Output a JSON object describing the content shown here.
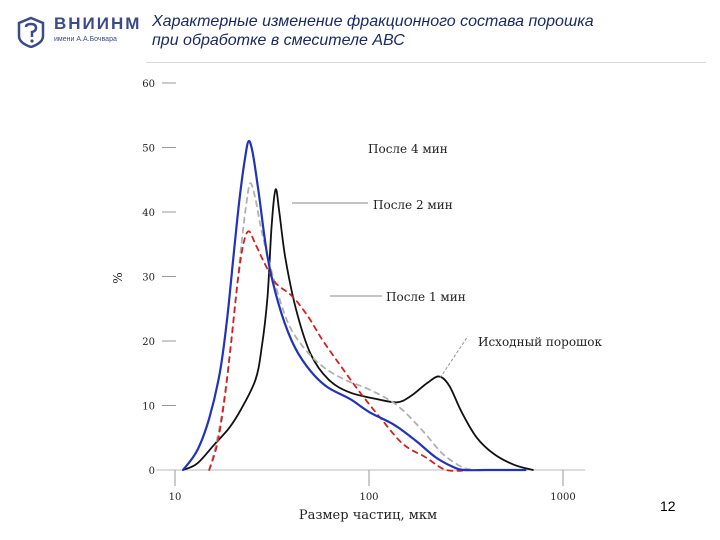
{
  "header": {
    "logo_name": "ВНИИНМ",
    "logo_subtitle": "имени А.А.Бочвара",
    "title_lines": [
      "Характерные изменение фракционного состава порошка",
      "при обработке в смесителе АВС"
    ]
  },
  "page_number": "12",
  "chart_data": {
    "type": "line",
    "xscale": "log",
    "xlim": [
      8,
      1300
    ],
    "ylim": [
      0,
      60
    ],
    "xlabel": "Размер частиц, мкм",
    "ylabel": "%",
    "x_ticks": [
      {
        "value": 10,
        "label": "10"
      },
      {
        "value": 100,
        "label": "100"
      },
      {
        "value": 1000,
        "label": "1000"
      }
    ],
    "y_ticks": [
      {
        "value": 0,
        "label": "0"
      },
      {
        "value": 10,
        "label": "10"
      },
      {
        "value": 20,
        "label": "20"
      },
      {
        "value": 30,
        "label": "30"
      },
      {
        "value": 40,
        "label": "40"
      },
      {
        "value": 50,
        "label": "50"
      },
      {
        "value": 60,
        "label": "60"
      }
    ],
    "series": [
      {
        "name": "Исходный порошок",
        "color": "#111111",
        "dash": "solid",
        "points": [
          [
            11,
            0
          ],
          [
            13,
            1
          ],
          [
            16,
            4
          ],
          [
            19,
            6.5
          ],
          [
            22,
            9.5
          ],
          [
            26,
            14
          ],
          [
            28,
            19
          ],
          [
            30,
            27
          ],
          [
            31.5,
            38
          ],
          [
            33,
            43.5
          ],
          [
            34.5,
            40
          ],
          [
            37,
            33
          ],
          [
            42,
            25
          ],
          [
            50,
            18
          ],
          [
            62,
            14
          ],
          [
            80,
            12
          ],
          [
            110,
            11
          ],
          [
            140,
            10.5
          ],
          [
            165,
            11.5
          ],
          [
            200,
            13.5
          ],
          [
            230,
            14.5
          ],
          [
            260,
            13
          ],
          [
            300,
            9
          ],
          [
            360,
            5
          ],
          [
            440,
            2.5
          ],
          [
            560,
            0.8
          ],
          [
            700,
            0
          ]
        ]
      },
      {
        "name": "После 2 мин",
        "color": "#b0b0b0",
        "dash": "dashed",
        "points": [
          [
            15,
            0
          ],
          [
            16,
            3
          ],
          [
            17.5,
            9
          ],
          [
            19,
            17
          ],
          [
            20.5,
            26
          ],
          [
            22,
            35
          ],
          [
            23.5,
            42
          ],
          [
            24.5,
            44.5
          ],
          [
            26,
            42
          ],
          [
            28,
            37
          ],
          [
            32,
            30
          ],
          [
            38,
            23
          ],
          [
            46,
            19
          ],
          [
            58,
            16
          ],
          [
            75,
            14
          ],
          [
            100,
            12.5
          ],
          [
            140,
            10
          ],
          [
            190,
            6
          ],
          [
            240,
            2.5
          ],
          [
            300,
            0.5
          ],
          [
            350,
            0
          ]
        ]
      },
      {
        "name": "После 1 мин",
        "color": "#d42020",
        "dash": "dashed",
        "points": [
          [
            15,
            0
          ],
          [
            16.5,
            4
          ],
          [
            18,
            11
          ],
          [
            19.5,
            20
          ],
          [
            21,
            29
          ],
          [
            22.5,
            35
          ],
          [
            24,
            37
          ],
          [
            26,
            35
          ],
          [
            29,
            32
          ],
          [
            33,
            29
          ],
          [
            40,
            27
          ],
          [
            48,
            24
          ],
          [
            58,
            20
          ],
          [
            72,
            16
          ],
          [
            90,
            12
          ],
          [
            115,
            8
          ],
          [
            150,
            4
          ],
          [
            195,
            2
          ],
          [
            250,
            0
          ],
          [
            330,
            0
          ]
        ]
      },
      {
        "name": "После 4 мин",
        "color": "#2233bb",
        "dash": "solid",
        "points": [
          [
            11,
            0
          ],
          [
            13,
            3
          ],
          [
            15,
            8
          ],
          [
            17,
            15
          ],
          [
            18.5,
            23
          ],
          [
            20,
            33
          ],
          [
            21.5,
            42
          ],
          [
            23,
            48.5
          ],
          [
            24,
            51
          ],
          [
            25.2,
            49
          ],
          [
            27,
            43
          ],
          [
            30,
            33
          ],
          [
            34,
            26
          ],
          [
            40,
            20
          ],
          [
            48,
            16
          ],
          [
            60,
            13
          ],
          [
            80,
            11
          ],
          [
            100,
            9
          ],
          [
            135,
            7
          ],
          [
            175,
            4.5
          ],
          [
            220,
            2
          ],
          [
            270,
            0.5
          ],
          [
            310,
            0
          ],
          [
            400,
            0
          ],
          [
            500,
            0
          ],
          [
            640,
            0
          ]
        ]
      }
    ],
    "annotations": [
      "После 4 мин",
      "После 2 мин",
      "После 1 мин",
      "Исходный порошок"
    ]
  }
}
